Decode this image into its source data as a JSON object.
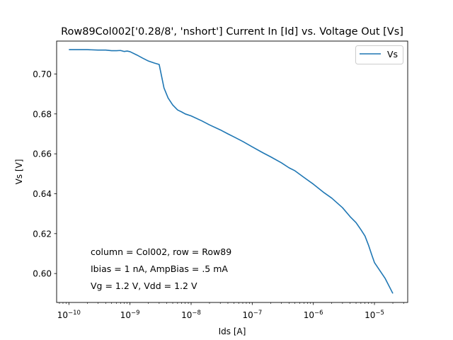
{
  "chart_data": {
    "type": "line",
    "title": "Row89Col002['0.28/8', 'nshort'] Current In [Id] vs. Voltage Out [Vs]",
    "xlabel": "Ids [A]",
    "ylabel": "Vs [V]",
    "xscale": "log",
    "xlim": [
      6.3e-11,
      3.5e-05
    ],
    "ylim": [
      0.5855,
      0.7165
    ],
    "grid": false,
    "legend_placement": "top-right",
    "x_ticks": [
      {
        "value": 1e-10,
        "base": "10",
        "exp": "−10"
      },
      {
        "value": 1e-09,
        "base": "10",
        "exp": "−9"
      },
      {
        "value": 1e-08,
        "base": "10",
        "exp": "−8"
      },
      {
        "value": 1e-07,
        "base": "10",
        "exp": "−7"
      },
      {
        "value": 1e-06,
        "base": "10",
        "exp": "−6"
      },
      {
        "value": 1e-05,
        "base": "10",
        "exp": "−5"
      }
    ],
    "y_ticks": [
      {
        "value": 0.6,
        "label": "0.60"
      },
      {
        "value": 0.62,
        "label": "0.62"
      },
      {
        "value": 0.64,
        "label": "0.64"
      },
      {
        "value": 0.66,
        "label": "0.66"
      },
      {
        "value": 0.68,
        "label": "0.68"
      },
      {
        "value": 0.7,
        "label": "0.70"
      }
    ],
    "series": [
      {
        "name": "Vs",
        "color": "#1f77b4",
        "x": [
          1e-10,
          1.5e-10,
          2e-10,
          3e-10,
          4e-10,
          5e-10,
          6e-10,
          7e-10,
          8e-10,
          9e-10,
          1e-09,
          1.3e-09,
          1.6e-09,
          2e-09,
          2.5e-09,
          3e-09,
          3.6e-09,
          4.2e-09,
          5e-09,
          6e-09,
          7e-09,
          8e-09,
          1e-08,
          1.5e-08,
          2e-08,
          3e-08,
          4e-08,
          5e-08,
          7e-08,
          1e-07,
          1.5e-07,
          2e-07,
          3e-07,
          4e-07,
          5e-07,
          7e-07,
          1e-06,
          1.5e-06,
          2e-06,
          3e-06,
          4e-06,
          5e-06,
          6e-06,
          7e-06,
          8e-06,
          9e-06,
          1e-05,
          1.5e-05,
          2e-05
        ],
        "y": [
          0.7122,
          0.7122,
          0.7122,
          0.712,
          0.712,
          0.7117,
          0.7117,
          0.7118,
          0.7113,
          0.7115,
          0.7112,
          0.7095,
          0.708,
          0.7065,
          0.7055,
          0.7048,
          0.693,
          0.688,
          0.6845,
          0.682,
          0.681,
          0.68,
          0.679,
          0.6765,
          0.6745,
          0.672,
          0.67,
          0.6685,
          0.6662,
          0.6635,
          0.6605,
          0.6585,
          0.6555,
          0.653,
          0.6515,
          0.6482,
          0.6448,
          0.6405,
          0.6378,
          0.633,
          0.6285,
          0.6255,
          0.622,
          0.6188,
          0.6142,
          0.6095,
          0.6055,
          0.5975,
          0.59
        ]
      }
    ],
    "annotations": [
      "column = Col002, row = Row89",
      "Ibias = 1 nA, AmpBias = .5 mA",
      "Vg = 1.2 V, Vdd = 1.2 V"
    ]
  }
}
